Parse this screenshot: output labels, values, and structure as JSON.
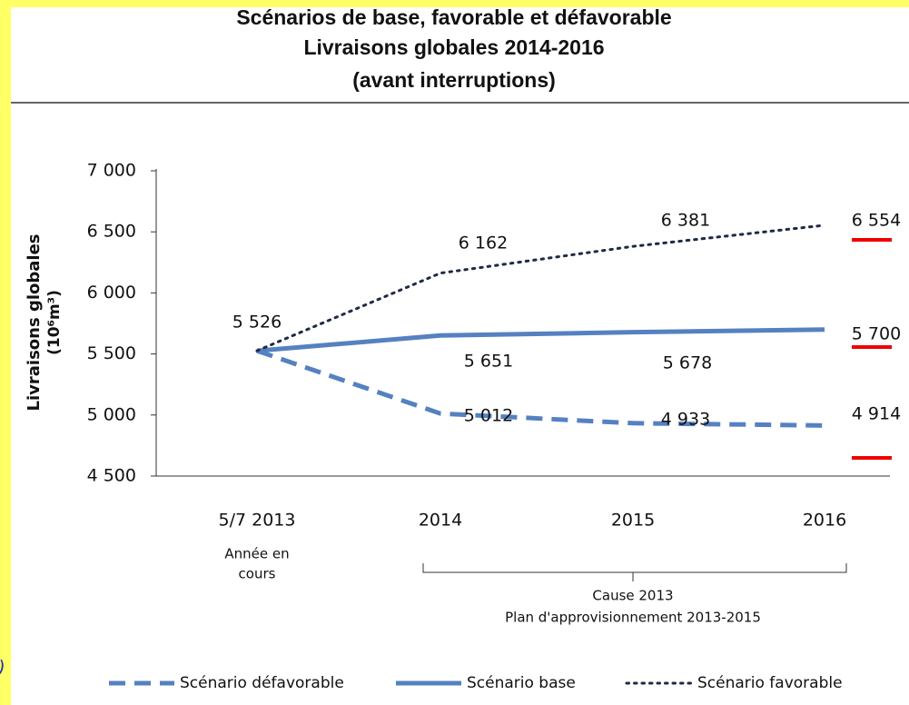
{
  "chart_data": {
    "type": "line",
    "title": [
      "Scénarios de base, favorable et défavorable",
      "Livraisons globales 2014-2016",
      "(avant interruptions)"
    ],
    "ylabel": [
      "Livraisons globales",
      "(10⁶m³)"
    ],
    "categories": [
      "5/7 2013",
      "2014",
      "2015",
      "2016"
    ],
    "annotations": [
      "Année en",
      "cours",
      "Cause 2013",
      "Plan d'approvisionnement 2013-2015",
      ")"
    ],
    "ylim": [
      4500,
      7000
    ],
    "yticks": [
      {
        "value": 4500,
        "label": "4 500"
      },
      {
        "value": 5000,
        "label": "5 000"
      },
      {
        "value": 5500,
        "label": "5 500"
      },
      {
        "value": 6000,
        "label": "6 000"
      },
      {
        "value": 6500,
        "label": "6 500"
      },
      {
        "value": 7000,
        "label": "7 000"
      }
    ],
    "series": [
      {
        "name": "Scénario défavorable",
        "color": "#5581c1",
        "style": "dashed",
        "values": [
          5526,
          5012,
          4933,
          4914
        ],
        "value_labels": [
          "5 526",
          "5 012",
          "4 933",
          "4 914"
        ]
      },
      {
        "name": "Scénario base",
        "color": "#5581c1",
        "style": "solid",
        "values": [
          5526,
          5651,
          5678,
          5700
        ],
        "value_labels": [
          "5 526",
          "5 651",
          "5 678",
          "5 700"
        ]
      },
      {
        "name": "Scénario favorable",
        "color": "#1f2a44",
        "style": "dotted",
        "values": [
          5526,
          6162,
          6381,
          6554
        ],
        "value_labels": [
          "5 526",
          "6 162",
          "6 381",
          "6 554"
        ]
      }
    ]
  }
}
